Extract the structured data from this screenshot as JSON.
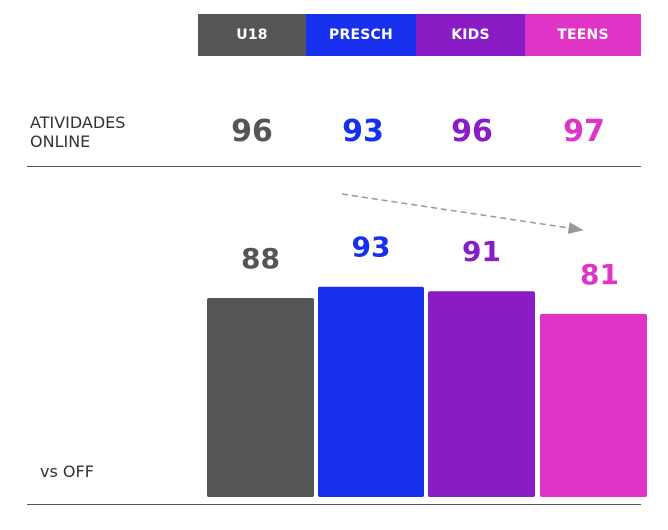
{
  "colors": [
    "#555555",
    "#1730ee",
    "#8a1cc6",
    "#e034c6"
  ],
  "headers": [
    "U18",
    "PRESCH",
    "KIDS",
    "TEENS"
  ],
  "online": {
    "label": "ATIVIDADES\nONLINE",
    "values": [
      "96",
      "93",
      "96",
      "97"
    ]
  },
  "vs_off": {
    "label": "vs OFF"
  },
  "chart_data": {
    "type": "bar",
    "categories": [
      "U18",
      "PRESCH",
      "KIDS",
      "TEENS"
    ],
    "values": [
      88,
      93,
      91,
      81
    ],
    "title": "",
    "xlabel": "",
    "ylabel": "",
    "trend_arrow": "decreasing from PRESCH to TEENS"
  }
}
